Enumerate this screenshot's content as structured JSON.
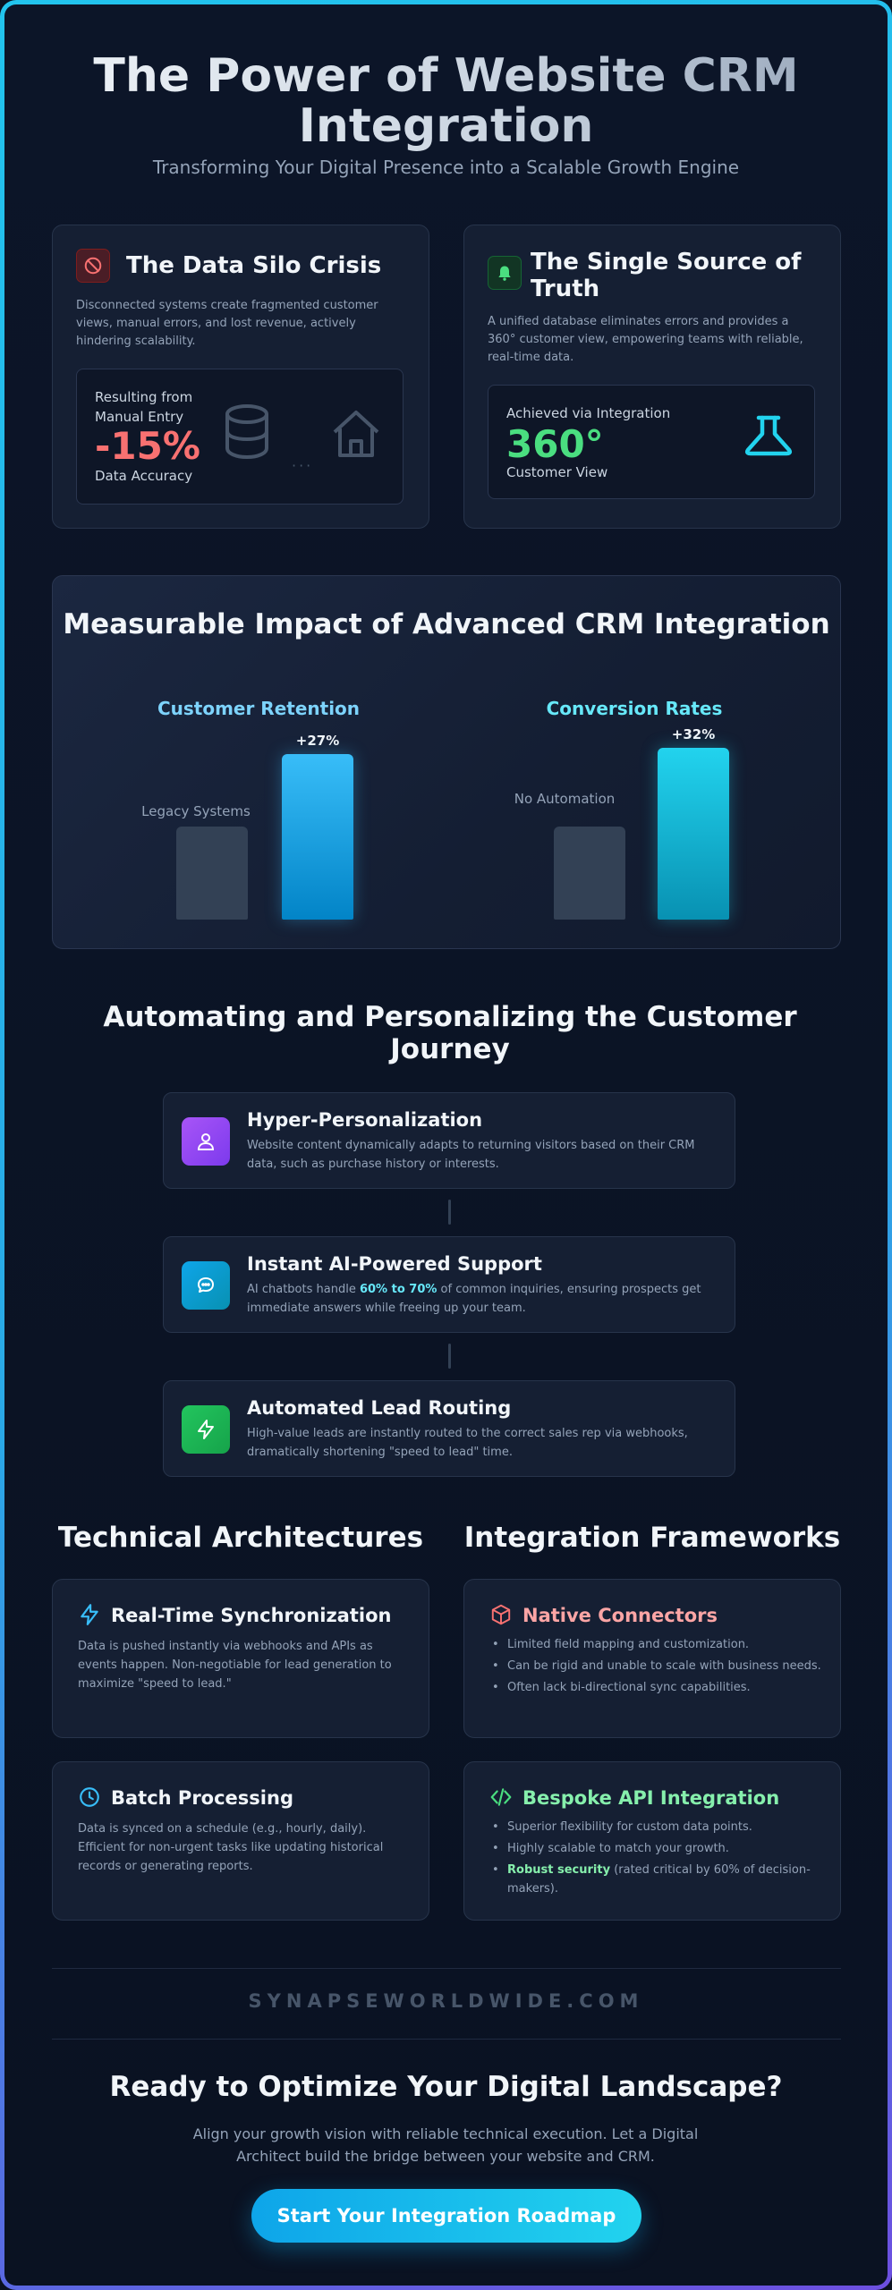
{
  "hero": {
    "title": "The Power of Website CRM Integration",
    "subtitle": "Transforming Your Digital Presence into a Scalable Growth Engine"
  },
  "crisis": {
    "title": "The Data Silo Crisis",
    "text": "Disconnected systems create fragmented customer views, manual errors, and lost revenue, actively hindering scalability.",
    "label_top": "Resulting from Manual Entry",
    "stat": "-15%",
    "label_bottom": "Data Accuracy",
    "icons": [
      "ban-icon",
      "database-icon",
      "house-icon"
    ],
    "accent": "#f87171"
  },
  "truth": {
    "title": "The Single Source of Truth",
    "text": "A unified database eliminates errors and provides a 360° customer view, empowering teams with reliable, real-time data.",
    "label_top": "Achieved via Integration",
    "stat": "360°",
    "label_bottom": "Customer View",
    "icons": [
      "bell-icon",
      "flask-icon"
    ],
    "accent": "#4ade80"
  },
  "impact": {
    "title": "Measurable Impact of Advanced CRM Integration",
    "metrics": [
      {
        "title": "Customer Retention",
        "baseline_label": "Legacy Systems",
        "improved_label": "+27%",
        "baseline_level": 1.0,
        "improved_level": 1.27,
        "color": "#38bdf8"
      },
      {
        "title": "Conversion Rates",
        "baseline_label": "No Automation",
        "improved_label": "+32%",
        "baseline_level": 1.0,
        "improved_level": 1.32,
        "color": "#67e8f9"
      }
    ]
  },
  "journey": {
    "title": "Automating and Personalizing the Customer Journey",
    "steps": [
      {
        "title": "Hyper-Personalization",
        "text": "Website content dynamically adapts to returning visitors based on their CRM data, such as purchase history or interests.",
        "icon": "user-icon",
        "color": "#a855f7"
      },
      {
        "title": "Instant AI-Powered Support",
        "text_before": "AI chatbots handle ",
        "text_highlight": "60% to 70%",
        "text_after": " of common inquiries, ensuring prospects get immediate answers while freeing up your team.",
        "icon": "chat-icon",
        "color": "#0ea5e9"
      },
      {
        "title": "Automated Lead Routing",
        "text": "High-value leads are instantly routed to the correct sales rep via webhooks, dramatically shortening \"speed to lead\" time.",
        "icon": "lightning-icon",
        "color": "#22c55e"
      }
    ]
  },
  "architectures": {
    "title": "Technical Architectures",
    "items": [
      {
        "title": "Real-Time Synchronization",
        "text": "Data is pushed instantly via webhooks and APIs as events happen. Non-negotiable for lead generation to maximize \"speed to lead.\"",
        "icon": "lightning-icon"
      },
      {
        "title": "Batch Processing",
        "text": "Data is synced on a schedule (e.g., hourly, daily). Efficient for non-urgent tasks like updating historical records or generating reports.",
        "icon": "clock-icon"
      }
    ]
  },
  "frameworks": {
    "title": "Integration Frameworks",
    "native": {
      "title": "Native Connectors",
      "icon": "cube-icon",
      "color": "#fca5a5",
      "bullets": [
        "Limited field mapping and customization.",
        "Can be rigid and unable to scale with business needs.",
        "Often lack bi-directional sync capabilities."
      ]
    },
    "bespoke": {
      "title": "Bespoke API Integration",
      "icon": "code-icon",
      "color": "#86efac",
      "bullets": [
        "Superior flexibility for custom data points.",
        "Highly scalable to match your growth."
      ],
      "security_strong": "Robust security",
      "security_rest": " (rated critical by 60% of decision-makers)."
    }
  },
  "footer": {
    "brand": "SYNAPSEWORLDWIDE.COM",
    "cta_title": "Ready to Optimize Your Digital Landscape?",
    "cta_text": "Align your growth vision with reliable technical execution. Let a Digital Architect build the bridge between your website and CRM.",
    "cta_button": "Start Your Integration Roadmap"
  }
}
